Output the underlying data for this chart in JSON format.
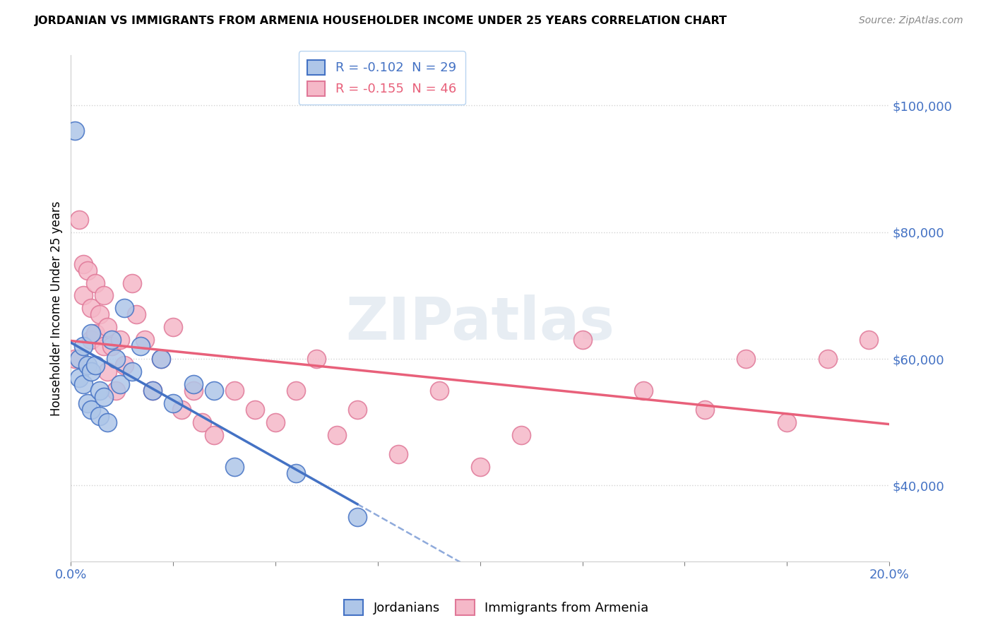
{
  "title": "JORDANIAN VS IMMIGRANTS FROM ARMENIA HOUSEHOLDER INCOME UNDER 25 YEARS CORRELATION CHART",
  "source": "Source: ZipAtlas.com",
  "ylabel": "Householder Income Under 25 years",
  "xlim": [
    0.0,
    0.2
  ],
  "ylim": [
    28000,
    108000
  ],
  "yticks": [
    40000,
    60000,
    80000,
    100000
  ],
  "ytick_labels": [
    "$40,000",
    "$60,000",
    "$80,000",
    "$100,000"
  ],
  "xticks": [
    0.0,
    0.025,
    0.05,
    0.075,
    0.1,
    0.125,
    0.15,
    0.175,
    0.2
  ],
  "xtick_labels": [
    "0.0%",
    "",
    "",
    "",
    "",
    "",
    "",
    "",
    "20.0%"
  ],
  "legend1_label": "R = -0.102  N = 29",
  "legend2_label": "R = -0.155  N = 46",
  "jordanian_color": "#aec6e8",
  "jordan_edge_color": "#4472c4",
  "armenia_color": "#f5b8c8",
  "armenia_edge_color": "#e07898",
  "trend_jordanian_color": "#4472c4",
  "trend_armenia_color": "#e8607a",
  "watermark_text": "ZIPatlas",
  "jordanians_x": [
    0.001,
    0.002,
    0.002,
    0.003,
    0.003,
    0.004,
    0.004,
    0.005,
    0.005,
    0.005,
    0.006,
    0.007,
    0.007,
    0.008,
    0.009,
    0.01,
    0.011,
    0.012,
    0.013,
    0.015,
    0.017,
    0.02,
    0.022,
    0.025,
    0.03,
    0.035,
    0.04,
    0.055,
    0.07
  ],
  "jordanians_y": [
    96000,
    60000,
    57000,
    62000,
    56000,
    59000,
    53000,
    64000,
    58000,
    52000,
    59000,
    55000,
    51000,
    54000,
    50000,
    63000,
    60000,
    56000,
    68000,
    58000,
    62000,
    55000,
    60000,
    53000,
    56000,
    55000,
    43000,
    42000,
    35000
  ],
  "armenia_x": [
    0.001,
    0.002,
    0.003,
    0.003,
    0.004,
    0.005,
    0.005,
    0.006,
    0.006,
    0.007,
    0.008,
    0.008,
    0.009,
    0.009,
    0.01,
    0.011,
    0.012,
    0.013,
    0.015,
    0.016,
    0.018,
    0.02,
    0.022,
    0.025,
    0.027,
    0.03,
    0.032,
    0.035,
    0.04,
    0.045,
    0.05,
    0.055,
    0.06,
    0.065,
    0.07,
    0.08,
    0.09,
    0.1,
    0.11,
    0.125,
    0.14,
    0.155,
    0.165,
    0.175,
    0.185,
    0.195
  ],
  "armenia_y": [
    60000,
    82000,
    75000,
    70000,
    74000,
    68000,
    63000,
    72000,
    64000,
    67000,
    70000,
    62000,
    65000,
    58000,
    62000,
    55000,
    63000,
    59000,
    72000,
    67000,
    63000,
    55000,
    60000,
    65000,
    52000,
    55000,
    50000,
    48000,
    55000,
    52000,
    50000,
    55000,
    60000,
    48000,
    52000,
    45000,
    55000,
    43000,
    48000,
    63000,
    55000,
    52000,
    60000,
    50000,
    60000,
    63000
  ]
}
